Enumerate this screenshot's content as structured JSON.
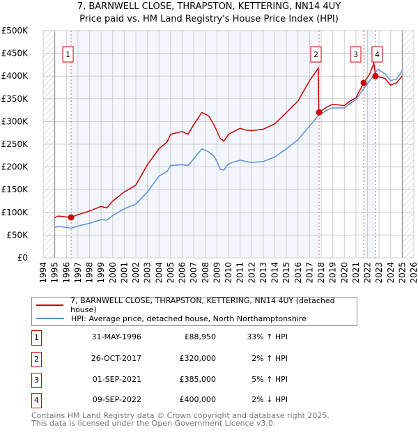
{
  "chart_data": {
    "type": "line",
    "title": "7, BARNWELL CLOSE, THRAPSTON, KETTERING, NN14 4UY",
    "subtitle": "Price paid vs. HM Land Registry's House Price Index (HPI)",
    "xlim": [
      1994,
      2026
    ],
    "ylim": [
      0,
      500000
    ],
    "x_ticks": [
      "1994",
      "1995",
      "1996",
      "1997",
      "1998",
      "1999",
      "2000",
      "2001",
      "2002",
      "2003",
      "2004",
      "2005",
      "2006",
      "2007",
      "2008",
      "2009",
      "2010",
      "2011",
      "2012",
      "2013",
      "2014",
      "2015",
      "2016",
      "2017",
      "2018",
      "2019",
      "2020",
      "2021",
      "2022",
      "2023",
      "2024",
      "2025",
      "2026"
    ],
    "y_ticks": [
      {
        "v": 0,
        "label": "£0"
      },
      {
        "v": 50000,
        "label": "£50K"
      },
      {
        "v": 100000,
        "label": "£100K"
      },
      {
        "v": 150000,
        "label": "£150K"
      },
      {
        "v": 200000,
        "label": "£200K"
      },
      {
        "v": 250000,
        "label": "£250K"
      },
      {
        "v": 300000,
        "label": "£300K"
      },
      {
        "v": 350000,
        "label": "£350K"
      },
      {
        "v": 400000,
        "label": "£400K"
      },
      {
        "v": 450000,
        "label": "£450K"
      },
      {
        "v": 500000,
        "label": "£500K"
      }
    ],
    "grid": true,
    "series": [
      {
        "name": "7, BARNWELL CLOSE, THRAPSTON, KETTERING, NN14 4UY (detached house)",
        "color": "#cc0000",
        "x": [
          1995,
          1995.3,
          1996,
          1996.4,
          1997,
          1998,
          1999,
          1999.5,
          2000,
          2001,
          2002,
          2003,
          2004,
          2004.7,
          2005,
          2006,
          2006.5,
          2007,
          2007.7,
          2008.3,
          2008.8,
          2009.3,
          2009.6,
          2010,
          2011,
          2011.5,
          2012,
          2013,
          2014,
          2015,
          2016,
          2017,
          2017.75,
          2017.8,
          2018.5,
          2019,
          2020,
          2020.5,
          2021,
          2021.67,
          2022.2,
          2022.55,
          2022.7,
          2023.5,
          2024,
          2024.5,
          2025
        ],
        "y": [
          88000,
          92000,
          90000,
          89000,
          95000,
          103000,
          113000,
          110000,
          125000,
          145000,
          160000,
          205000,
          240000,
          255000,
          272000,
          278000,
          272000,
          293000,
          320000,
          312000,
          290000,
          262000,
          257000,
          272000,
          285000,
          281000,
          280000,
          283000,
          295000,
          320000,
          345000,
          390000,
          417000,
          320000,
          332000,
          338000,
          335000,
          345000,
          352000,
          385000,
          405000,
          428000,
          400000,
          395000,
          380000,
          385000,
          400000
        ]
      },
      {
        "name": "HPI: Average price, detached house, North Northamptonshire",
        "color": "#5b8ed6",
        "x": [
          1995,
          1995.3,
          1996,
          1996.4,
          1997,
          1998,
          1999,
          1999.5,
          2000,
          2001,
          2002,
          2003,
          2004,
          2004.7,
          2005,
          2006,
          2006.5,
          2007,
          2007.7,
          2008.3,
          2008.8,
          2009.3,
          2009.6,
          2010,
          2011,
          2011.5,
          2012,
          2013,
          2014,
          2015,
          2016,
          2017,
          2017.8,
          2018.5,
          2019,
          2020,
          2020.5,
          2021,
          2021.67,
          2022.2,
          2022.9,
          2023.5,
          2024,
          2024.5,
          2025
        ],
        "y": [
          67000,
          69000,
          67000,
          65000,
          70000,
          76000,
          84000,
          83000,
          93000,
          108000,
          118000,
          145000,
          180000,
          190000,
          203000,
          205000,
          203000,
          218000,
          240000,
          233000,
          222000,
          195000,
          193000,
          207000,
          215000,
          212000,
          210000,
          212000,
          222000,
          240000,
          260000,
          290000,
          314000,
          325000,
          330000,
          330000,
          340000,
          348000,
          372000,
          390000,
          415000,
          405000,
          390000,
          393000,
          412000
        ]
      }
    ],
    "sales": [
      {
        "n": "1",
        "x": 1996.41,
        "y": 88950,
        "date": "31-MAY-1996",
        "price": "£88,950",
        "change": "33% ↑ HPI"
      },
      {
        "n": "2",
        "x": 2017.82,
        "y": 320000,
        "date": "26-OCT-2017",
        "price": "£320,000",
        "change": "2% ↑ HPI"
      },
      {
        "n": "3",
        "x": 2021.67,
        "y": 385000,
        "date": "01-SEP-2021",
        "price": "£385,000",
        "change": "5% ↑ HPI"
      },
      {
        "n": "4",
        "x": 2022.69,
        "y": 400000,
        "date": "09-SEP-2022",
        "price": "£400,000",
        "change": "2% ↓ HPI"
      }
    ],
    "legend_placement": "bottom"
  },
  "footer": {
    "line1": "Contains HM Land Registry data © Crown copyright and database right 2025.",
    "line2": "This data is licensed under the Open Government Licence v3.0."
  }
}
